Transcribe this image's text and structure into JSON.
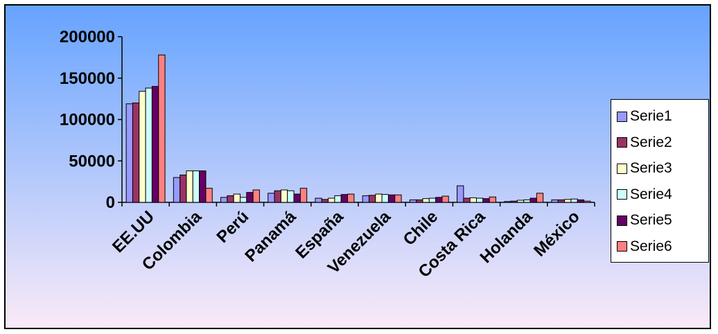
{
  "chart_data": {
    "type": "bar",
    "title": "",
    "xlabel": "",
    "ylabel": "",
    "ylim": [
      0,
      200000
    ],
    "yticks": [
      0,
      50000,
      100000,
      150000,
      200000
    ],
    "categories": [
      "EE.UU",
      "Colombia",
      "Perú",
      "Panamá",
      "España",
      "Venezuela",
      "Chile",
      "Costa Rica",
      "Holanda",
      "México"
    ],
    "series": [
      {
        "name": "Serie1",
        "color": "#9999FF",
        "values": [
          119000,
          30000,
          6000,
          11000,
          5000,
          8000,
          3000,
          20000,
          1000,
          3000
        ]
      },
      {
        "name": "Serie2",
        "color": "#993366",
        "values": [
          120000,
          33000,
          8000,
          14000,
          3500,
          8500,
          3000,
          5000,
          1500,
          3000
        ]
      },
      {
        "name": "Serie3",
        "color": "#FFFFCC",
        "values": [
          134000,
          38000,
          10000,
          15000,
          5000,
          10000,
          4500,
          5500,
          2500,
          3500
        ]
      },
      {
        "name": "Serie4",
        "color": "#CCFFFF",
        "values": [
          138000,
          38000,
          6000,
          14000,
          8000,
          9500,
          5000,
          5000,
          3000,
          4000
        ]
      },
      {
        "name": "Serie5",
        "color": "#660066",
        "values": [
          140000,
          38000,
          12000,
          10000,
          9500,
          9000,
          6000,
          4500,
          5000,
          3000
        ]
      },
      {
        "name": "Serie6",
        "color": "#FF8080",
        "values": [
          178000,
          17000,
          15000,
          17000,
          10000,
          9000,
          7500,
          6500,
          11000,
          1500
        ]
      }
    ],
    "grid": false,
    "legend_position": "right",
    "background_gradient": [
      "#66A3FF",
      "#FAEAF8"
    ]
  }
}
